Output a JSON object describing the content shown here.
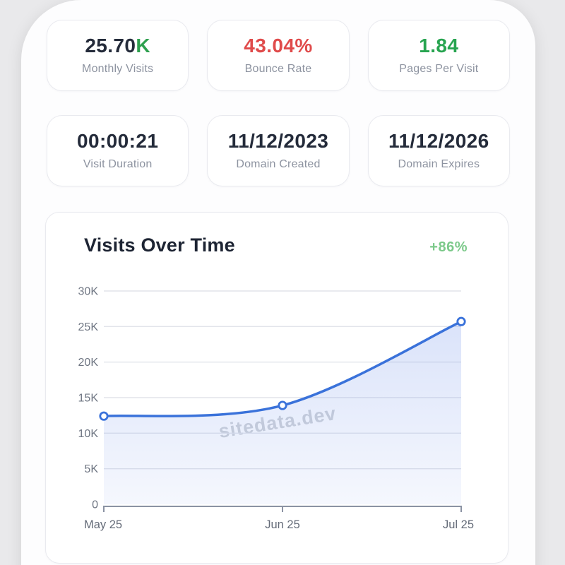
{
  "page": {
    "background": "#e9e9eb",
    "surface": "#fdfdfe"
  },
  "stats": {
    "cards": [
      {
        "value": "25.70",
        "suffix": "K",
        "label": "Monthly Visits",
        "value_color": "#242b3a",
        "suffix_color": "#2ea04e"
      },
      {
        "value": "43.04%",
        "label": "Bounce Rate",
        "value_color": "#e04b4b"
      },
      {
        "value": "1.84",
        "label": "Pages Per Visit",
        "value_color": "#27a450"
      },
      {
        "value": "00:00:21",
        "label": "Visit Duration",
        "value_color": "#242b3a"
      },
      {
        "value": "11/12/2023",
        "label": "Domain Created",
        "value_color": "#242b3a"
      },
      {
        "value": "11/12/2026",
        "label": "Domain Expires",
        "value_color": "#242b3a"
      }
    ]
  },
  "chart": {
    "title": "Visits Over Time",
    "change_badge": "+86%",
    "change_color": "#7cc98a",
    "watermark": "sitedata.dev",
    "line_color": "#3a72da",
    "area_color": "#7293ea",
    "grid_color": "#e2e4ea",
    "axis_color": "#8b93a3",
    "tick_label_color": "#6e7582"
  },
  "chart_data": {
    "type": "line",
    "title": "Visits Over Time",
    "series_name": "Monthly Visits",
    "categories": [
      "May 25",
      "Jun 25",
      "Jul 25"
    ],
    "values": [
      12400,
      13900,
      25700
    ],
    "xlabel": "",
    "ylabel": "",
    "ylim": [
      0,
      30000
    ],
    "yticks": [
      0,
      5000,
      10000,
      15000,
      20000,
      25000,
      30000
    ],
    "ytick_labels": [
      "0",
      "5K",
      "10K",
      "15K",
      "20K",
      "25K",
      "30K"
    ],
    "grid": true,
    "legend": false,
    "markers": "open-circle",
    "annotations": [
      "+86%"
    ]
  }
}
